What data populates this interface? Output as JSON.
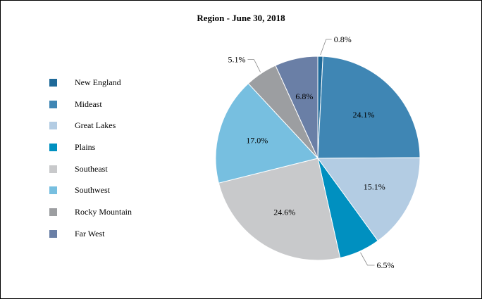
{
  "chart_data": {
    "type": "pie",
    "title": "Region - June 30, 2018",
    "legend_position": "left",
    "slices": [
      {
        "name": "New England",
        "value": 0.8,
        "label": "0.8%",
        "color": "#1f6a99"
      },
      {
        "name": "Mideast",
        "value": 24.1,
        "label": "24.1%",
        "color": "#3f86b4"
      },
      {
        "name": "Great Lakes",
        "value": 15.1,
        "label": "15.1%",
        "color": "#b3cce3"
      },
      {
        "name": "Plains",
        "value": 6.5,
        "label": "6.5%",
        "color": "#0090c0"
      },
      {
        "name": "Southeast",
        "value": 24.6,
        "label": "24.6%",
        "color": "#c8c9cb"
      },
      {
        "name": "Southwest",
        "value": 17.0,
        "label": "17.0%",
        "color": "#77bfe0"
      },
      {
        "name": "Rocky Mountain",
        "value": 5.1,
        "label": "5.1%",
        "color": "#9c9ea1"
      },
      {
        "name": "Far West",
        "value": 6.8,
        "label": "6.8%",
        "color": "#6a7fa6"
      }
    ]
  }
}
